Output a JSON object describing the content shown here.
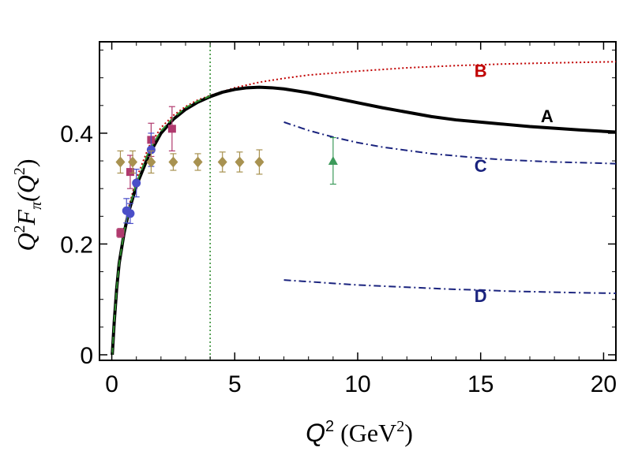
{
  "chart_data": {
    "type": "line",
    "title": "",
    "xlabel": {
      "base": "Q",
      "sup": "2",
      "units": "(GeV",
      "units_sup": "2",
      "units_close": ")"
    },
    "ylabel": {
      "q": "Q",
      "q_sup": "2",
      "f": "F",
      "f_sub": "π",
      "open": "(Q",
      "arg_sup": "2",
      "close": ")"
    },
    "xlim": [
      -0.5,
      20.5
    ],
    "ylim": [
      -0.01,
      0.565
    ],
    "xticks": [
      0,
      5,
      10,
      15,
      20
    ],
    "xtick_labels": [
      "0",
      "5",
      "10",
      "15",
      "20"
    ],
    "yticks": [
      0,
      0.2,
      0.4
    ],
    "ytick_labels": [
      "0",
      "0.2",
      "0.4"
    ],
    "reference_line": {
      "x": 4,
      "color": "#2e8b2e",
      "style": "dotted"
    },
    "series": [
      {
        "name": "A",
        "color": "#000000",
        "style": "solid",
        "points": [
          [
            0.02,
            0.0
          ],
          [
            0.1,
            0.06
          ],
          [
            0.2,
            0.12
          ],
          [
            0.3,
            0.165
          ],
          [
            0.5,
            0.22
          ],
          [
            0.7,
            0.26
          ],
          [
            1.0,
            0.305
          ],
          [
            1.5,
            0.36
          ],
          [
            2.0,
            0.4
          ],
          [
            2.5,
            0.425
          ],
          [
            3.0,
            0.443
          ],
          [
            3.5,
            0.456
          ],
          [
            4.0,
            0.466
          ],
          [
            4.5,
            0.474
          ],
          [
            5.0,
            0.479
          ],
          [
            5.5,
            0.482
          ],
          [
            6.0,
            0.483
          ],
          [
            6.5,
            0.482
          ],
          [
            7.0,
            0.48
          ],
          [
            8.0,
            0.473
          ],
          [
            9.0,
            0.464
          ],
          [
            10.0,
            0.455
          ],
          [
            11.0,
            0.446
          ],
          [
            12.0,
            0.438
          ],
          [
            13.0,
            0.43
          ],
          [
            14.0,
            0.424
          ],
          [
            15.0,
            0.42
          ],
          [
            16.0,
            0.416
          ],
          [
            17.0,
            0.412
          ],
          [
            18.0,
            0.409
          ],
          [
            19.0,
            0.406
          ],
          [
            20.5,
            0.402
          ]
        ]
      },
      {
        "name": "B",
        "color": "#c00000",
        "style": "dotted",
        "points": [
          [
            0.02,
            0.0
          ],
          [
            0.1,
            0.06
          ],
          [
            0.2,
            0.12
          ],
          [
            0.3,
            0.165
          ],
          [
            0.5,
            0.225
          ],
          [
            0.7,
            0.268
          ],
          [
            1.0,
            0.318
          ],
          [
            1.5,
            0.375
          ],
          [
            2.0,
            0.41
          ],
          [
            2.5,
            0.432
          ],
          [
            3.0,
            0.448
          ],
          [
            3.5,
            0.46
          ],
          [
            4.0,
            0.468
          ],
          [
            5.0,
            0.482
          ],
          [
            6.0,
            0.492
          ],
          [
            7.0,
            0.499
          ],
          [
            8.0,
            0.505
          ],
          [
            10.0,
            0.512
          ],
          [
            12.0,
            0.518
          ],
          [
            14.0,
            0.522
          ],
          [
            16.0,
            0.525
          ],
          [
            18.0,
            0.527
          ],
          [
            20.5,
            0.529
          ]
        ]
      },
      {
        "name": "green-dashed",
        "color": "#2e8b2e",
        "style": "dashed",
        "points": [
          [
            0.02,
            0.0
          ],
          [
            0.1,
            0.06
          ],
          [
            0.2,
            0.12
          ],
          [
            0.3,
            0.165
          ],
          [
            0.5,
            0.222
          ],
          [
            0.7,
            0.263
          ],
          [
            1.0,
            0.31
          ],
          [
            1.5,
            0.367
          ],
          [
            2.0,
            0.404
          ],
          [
            2.5,
            0.428
          ],
          [
            3.0,
            0.446
          ],
          [
            3.5,
            0.458
          ],
          [
            4.0,
            0.467
          ]
        ]
      },
      {
        "name": "C",
        "color": "#1a237e",
        "style": "dashdot",
        "points": [
          [
            7.0,
            0.42
          ],
          [
            8.0,
            0.405
          ],
          [
            9.0,
            0.393
          ],
          [
            10.0,
            0.383
          ],
          [
            11.0,
            0.375
          ],
          [
            12.0,
            0.369
          ],
          [
            13.0,
            0.363
          ],
          [
            14.0,
            0.359
          ],
          [
            15.0,
            0.355
          ],
          [
            16.0,
            0.352
          ],
          [
            17.0,
            0.35
          ],
          [
            18.0,
            0.348
          ],
          [
            19.0,
            0.347
          ],
          [
            20.5,
            0.345
          ]
        ]
      },
      {
        "name": "D",
        "color": "#1a237e",
        "style": "dashdot",
        "points": [
          [
            7.0,
            0.135
          ],
          [
            8.0,
            0.132
          ],
          [
            9.0,
            0.129
          ],
          [
            10.0,
            0.126
          ],
          [
            11.0,
            0.124
          ],
          [
            12.0,
            0.122
          ],
          [
            13.0,
            0.12
          ],
          [
            14.0,
            0.118
          ],
          [
            15.0,
            0.117
          ],
          [
            16.0,
            0.115
          ],
          [
            17.0,
            0.114
          ],
          [
            18.0,
            0.113
          ],
          [
            19.0,
            0.112
          ],
          [
            20.5,
            0.111
          ]
        ]
      }
    ],
    "curve_labels": [
      {
        "text": "A",
        "x": 17.7,
        "y": 0.42,
        "color": "#000000"
      },
      {
        "text": "B",
        "x": 15.0,
        "y": 0.502,
        "color": "#c00000"
      },
      {
        "text": "C",
        "x": 15.0,
        "y": 0.33,
        "color": "#1a237e"
      },
      {
        "text": "D",
        "x": 15.0,
        "y": 0.095,
        "color": "#1a237e"
      }
    ],
    "datasets": [
      {
        "marker": "square",
        "color": "#b03a6e",
        "points": [
          {
            "x": 0.35,
            "y": 0.22,
            "err": 0.008
          },
          {
            "x": 0.75,
            "y": 0.33,
            "err": 0.03
          },
          {
            "x": 1.6,
            "y": 0.388,
            "err": 0.03
          },
          {
            "x": 2.45,
            "y": 0.408,
            "err": 0.04
          }
        ]
      },
      {
        "marker": "circle",
        "color": "#4a4ec8",
        "points": [
          {
            "x": 0.6,
            "y": 0.26,
            "err": 0.022
          },
          {
            "x": 0.75,
            "y": 0.255,
            "err": 0.018
          },
          {
            "x": 1.0,
            "y": 0.31,
            "err": 0.025
          },
          {
            "x": 1.6,
            "y": 0.37,
            "err": 0.03
          }
        ]
      },
      {
        "marker": "diamond",
        "color": "#a89250",
        "points": [
          {
            "x": 0.35,
            "y": 0.348,
            "err": 0.02
          },
          {
            "x": 0.85,
            "y": 0.348,
            "err": 0.02
          },
          {
            "x": 1.6,
            "y": 0.348,
            "err": 0.02
          },
          {
            "x": 2.5,
            "y": 0.348,
            "err": 0.015
          },
          {
            "x": 3.5,
            "y": 0.348,
            "err": 0.015
          },
          {
            "x": 4.5,
            "y": 0.348,
            "err": 0.018
          },
          {
            "x": 5.2,
            "y": 0.348,
            "err": 0.018
          },
          {
            "x": 6.0,
            "y": 0.348,
            "err": 0.022
          }
        ]
      },
      {
        "marker": "triangle",
        "color": "#3c9a5a",
        "points": [
          {
            "x": 9.0,
            "y": 0.35,
            "err": 0.042
          }
        ]
      }
    ]
  }
}
